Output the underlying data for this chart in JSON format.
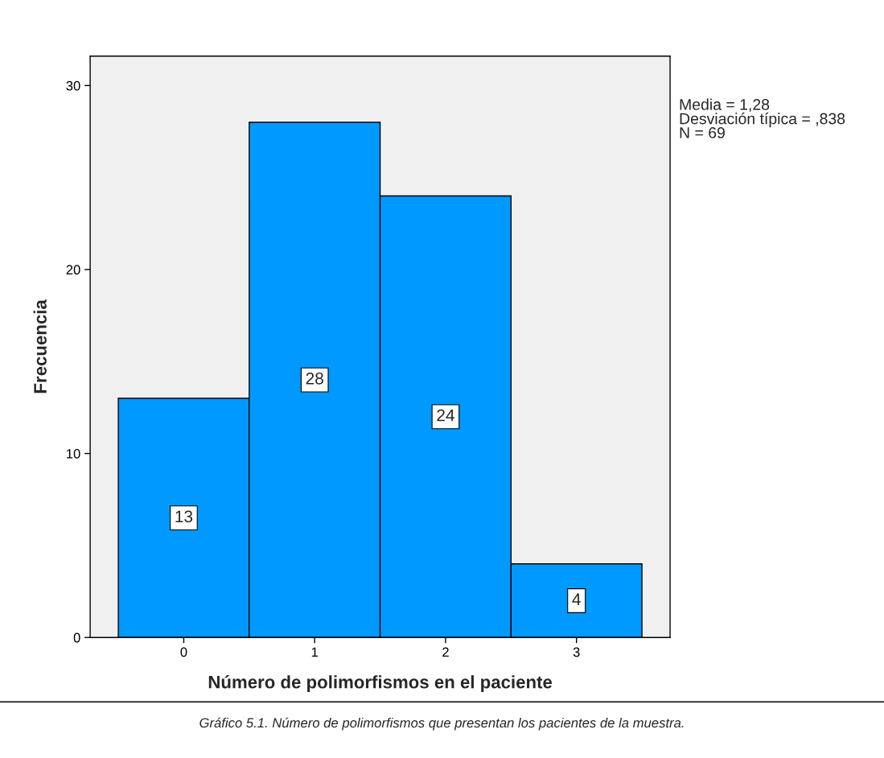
{
  "chart_data": {
    "type": "bar",
    "xlabel": "Número de polimorfismos en el paciente",
    "ylabel": "Frecuencia",
    "categories": [
      "0",
      "1",
      "2",
      "3"
    ],
    "values": [
      13,
      28,
      24,
      4
    ],
    "color": "#0099ff",
    "ylim": [
      0,
      31.6
    ],
    "yticks": [
      0,
      10,
      20,
      30
    ],
    "grid": false,
    "data_labels": true,
    "annotations": [
      "Media = 1,28\nDesviación típica = ,838\nN = 69",
      "Gráfico 5.1. Número de polimorfismos que presentan los pacientes de la muestra."
    ]
  }
}
